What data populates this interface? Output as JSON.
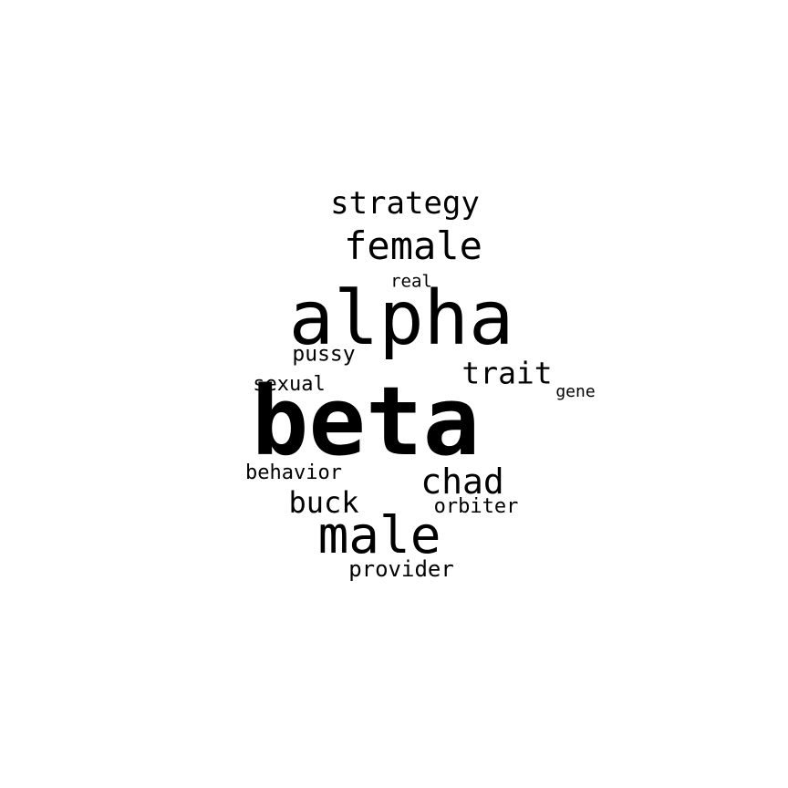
{
  "text_color": "#000000",
  "background_color": "#ffffff",
  "words": [
    {
      "text": "beta"
    },
    {
      "text": "alpha"
    },
    {
      "text": "male"
    },
    {
      "text": "female"
    },
    {
      "text": "strategy"
    },
    {
      "text": "chad"
    },
    {
      "text": "trait"
    },
    {
      "text": "buck"
    },
    {
      "text": "provider"
    },
    {
      "text": "behavior"
    },
    {
      "text": "orbiter"
    },
    {
      "text": "pussy"
    },
    {
      "text": "sexual"
    },
    {
      "text": "real"
    },
    {
      "text": "gene"
    }
  ]
}
